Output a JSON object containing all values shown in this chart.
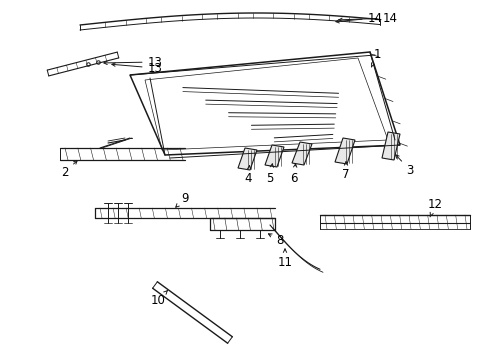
{
  "bg_color": "#ffffff",
  "line_color": "#1a1a1a",
  "text_color": "#000000",
  "font_size": 8.5,
  "fig_width": 4.89,
  "fig_height": 3.6,
  "dpi": 100
}
